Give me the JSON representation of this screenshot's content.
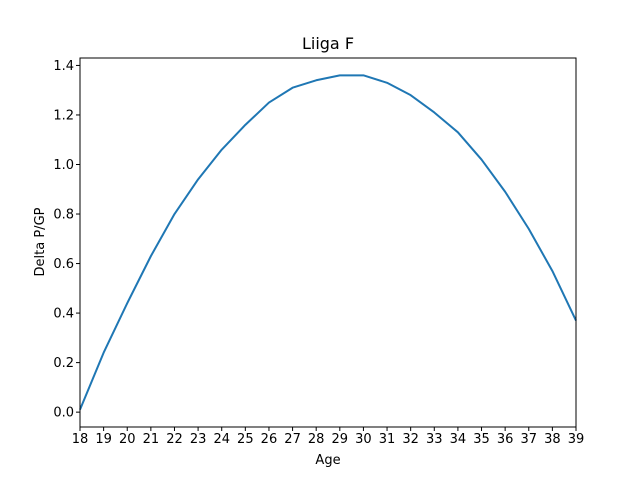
{
  "chart_data": {
    "type": "line",
    "title": "Liiga F",
    "xlabel": "Age",
    "ylabel": "Delta P/GP",
    "xlim": [
      18,
      39
    ],
    "ylim": [
      -0.06,
      1.43
    ],
    "x_ticks": [
      18,
      19,
      20,
      21,
      22,
      23,
      24,
      25,
      26,
      27,
      28,
      29,
      30,
      31,
      32,
      33,
      34,
      35,
      36,
      37,
      38,
      39
    ],
    "y_ticks": [
      0.0,
      0.2,
      0.4,
      0.6,
      0.8,
      1.0,
      1.2,
      1.4
    ],
    "y_tick_labels": [
      "0.0",
      "0.2",
      "0.4",
      "0.6",
      "0.8",
      "1.0",
      "1.2",
      "1.4"
    ],
    "grid": false,
    "colors": {
      "line": "#1f77b4",
      "axes": "#000000",
      "background": "#ffffff"
    },
    "series": [
      {
        "x": [
          18,
          19,
          20,
          21,
          22,
          23,
          24,
          25,
          26,
          27,
          28,
          29,
          30,
          31,
          32,
          33,
          34,
          35,
          36,
          37,
          38,
          39
        ],
        "values": [
          0.01,
          0.24,
          0.44,
          0.63,
          0.8,
          0.94,
          1.06,
          1.16,
          1.25,
          1.31,
          1.34,
          1.36,
          1.36,
          1.33,
          1.28,
          1.21,
          1.13,
          1.02,
          0.89,
          0.74,
          0.57,
          0.37
        ]
      }
    ]
  }
}
